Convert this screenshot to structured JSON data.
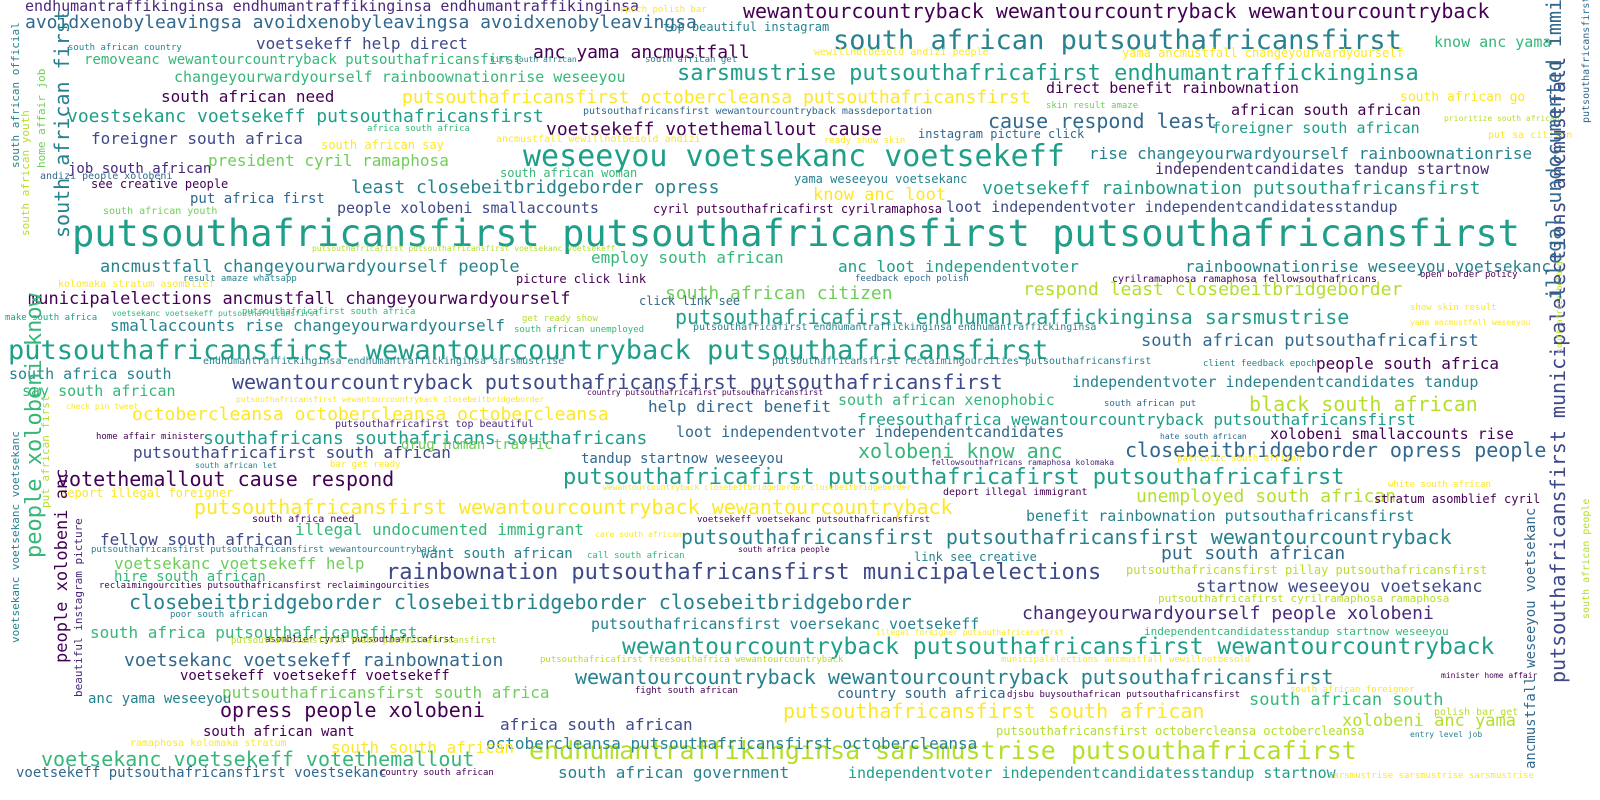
{
  "colors": {
    "yellow": "#fde725",
    "lime": "#b5de2b",
    "lightgreen": "#6ece58",
    "green": "#35b779",
    "teal": "#1f9e89",
    "blue": "#26828e",
    "steel": "#31688e",
    "indigo": "#3e4989",
    "purple": "#482878",
    "deep": "#440154"
  },
  "words": [
    "endhumantraffikinginsa endhumantraffikinginsa endhumantraffikinginsa",
    "avoidxenobyleavingsa avoidxenobyleavingsa avoidxenobyleavingsa",
    "wewantourcountryback wewantourcountryback wewantourcountryback",
    "south african putsouthafricansfirst",
    "sarsmustrise putsouthafricafirst endhumantraffickinginsa",
    "putsouthafricansfirst octobercleansa putsouthafricansfirst",
    "voestsekanc voetsekeff putsouthafricansfirst",
    "voetsekeff votethemallout cause",
    "weseeyou voetsekanc voetsekeff",
    "least closebeitbridgeborder opress",
    "voetsekeff rainbownation putsouthafricansfirst",
    "putsouthafricansfirst putsouthafricansfirst putsouthafricansfirst",
    "ancmustfall changeyourwardyourself people",
    "municipalelections ancmustfall changeyourwardyourself",
    "putsouthafricafirst endhumantraffickinginsa sarsmustrise",
    "putsouthafricansfirst wewantourcountryback putsouthafricansfirst",
    "wewantourcountryback putsouthafricansfirst putsouthafricansfirst",
    "octobercleansa octobercleansa octobercleansa",
    "southafricans southafricans southafricans",
    "xolobeni know anc",
    "closebeitbridgeborder opress people",
    "votethemallout cause respond",
    "putsouthafricafirst putsouthafricafirst putsouthafricafirst",
    "putsouthafricansfirst wewantourcountryback wewantourcountryback",
    "putsouthafricansfirst putsouthafricansfirst wewantourcountryback",
    "rainbownation putsouthafricansfirst municipalelections",
    "closebeitbridgeborder closebeitbridgeborder closebeitbridgeborder",
    "changeyourwardyourself people xolobeni",
    "voetsekanc voetsekeff rainbownation",
    "wewantourcountryback putsouthafricansfirst wewantourcountryback",
    "wewantourcountryback wewantourcountryback putsouthafricansfirst",
    "opress people xolobeni",
    "putsouthafricansfirst south african",
    "endhumantraffikinginsa sarsmustrise putsouthafricafirst",
    "voetsekanc voetsekeff votethemallout",
    "south african need",
    "foreigner south africa",
    "president cyril ramaphosa",
    "cause respond least",
    "employ south african",
    "south african citizen",
    "respond least closebeitbridgeborder",
    "black south african",
    "unemployed south african",
    "illegal undocumented immigrant",
    "votethemallout cause respond",
    "anc loot independentvoter",
    "rainboownationrise weseeyou voetsekanc",
    "know anc loot",
    "help direct benefit",
    "south african government",
    "independentvoter independentcandidatesstandup startnow",
    "africa south african",
    "octobercleansa putsouthafricansfirst octobercleansa",
    "south south african",
    "voetsekeff putsouthafricansfirst voestsekanc",
    "south africa putsouthafricansfirst",
    "putsouthafricansfirst south africa",
    "fellow south african",
    "voetsekanc voetsekeff help",
    "xolobeni anc yama",
    "south african south",
    "startnow weseeyou voetsekanc",
    "put south african",
    "benefit rainbownation putsouthafricansfirst",
    "freesouthafrica wewantourcountryback putsouthafricansfirst",
    "loot independentvoter independentcandidates",
    "south african xenophobic",
    "people south africa",
    "independentvoter independentcandidates tandup",
    "south african putsouthafricafirst",
    "smallaccounts rise changeyourwardyourself",
    "rise changeyourwardyourself rainboownationrise",
    "voetsekeff help direct",
    "anc yama ancmustfall",
    "know anc yama",
    "south african go",
    "african south african",
    "foreigner south african",
    "independentcandidates tandup startnow",
    "loot independentvoter independentcandidatesstandup",
    "people xolobeni smallaccounts",
    "direct benefit rainbownation",
    "south africa south",
    "say south african",
    "changeyourwardyourself rainboownationrise weseeyou",
    "job south african",
    "put africa first",
    "see creative people",
    "xolobeni smallaccounts rise",
    "drug human traffic",
    "tandup startnow weseeyou",
    "hire south african",
    "want south african",
    "anc yama weseeyou",
    "south african want",
    "country south africa",
    "putsouthafricansfirst voersekanc voetsekeff",
    "stratum asomblief cyril",
    "putsouthafricafirst south african",
    "top beautiful instagram",
    "instagram picture click",
    "yama weseeyou voetsekanc",
    "cyril putsouthafricafirst cyrilramaphosa",
    "picture click link",
    "click link see",
    "deport illegal foreigner",
    "deport illegal immigrant",
    "link see creative",
    "removeanc wewantourcountryback putsouthafricansfirst",
    "south african country",
    "south african say",
    "south african woman",
    "south african youth",
    "kolomaka stratum asomblief",
    "make south africa",
    "ramaphosa kolomaka stratum",
    "epoch polish bar",
    "yama ancmustfall changeyourwardyourself",
    "putsouthafricafirst cyrilramaphosa ramaphosa",
    "independentcandidatesstandup startnow weseeyou",
    "putsouthafricansfirst octobercleansa octobercleansa",
    "putsouthafricansfirst pillay putsouthafricansfirst",
    "polish bar get",
    "south african foreigner",
    "south african put",
    "hate south african",
    "white south african",
    "patriotic south african",
    "result amaze whatsapp",
    "feedback epoch polish",
    "client feedback epoch",
    "cyrilramaphosa ramaphosa fellowsouthafricans",
    "ready show skin",
    "get ready show",
    "south african unemployed",
    "show skin result",
    "skin result amaze",
    "care south african",
    "call south african",
    "south africa people",
    "fight south african",
    "poor south african",
    "country south african",
    "entry level job",
    "minister home affair",
    "home affair minister",
    "municipalelections ancmustfall wewillnotbesold",
    "djsbu buysouthafrican putsouthafricansfirst",
    "putsouthafricafirst freesouthafrica wewantourcountryback",
    "sarsmustrise sarsmustrise sarsmustrise",
    "putsouthafricafirst endhumantraffickinginsa endhumantraffickinginsa",
    "putsouthafricansfirst reclaimingourcities putsouthafricansfirst",
    "endhumantraffickinginsa endhumantraffickinginsa sarsmustrise",
    "putsouthafricansfirst wewantourcountryback massdeportation",
    "putsouthafricafirst top beautiful",
    "south african put",
    "asomblief cyril putsouthafricafirst",
    "anc loot independentvoter",
    "south african let",
    "bar get ready",
    "check pin tweet",
    "voetsekeff voetsekeff voetsekeff",
    "putsouthafricansfirst thabo putsouthafricansfirst",
    "reclaimingourcities putsouthafricansfirst reclaimingourcities",
    "putsouthafricansfirst putsouthafricansfirst wewantourcountryback",
    "south africa need",
    "voetsekeff voetsekanc putsouthafricansfirst",
    "illegal foreigner putsouthafricansfirst",
    "fellowsouthafricans ramaphosa kolomaka",
    "closebeitbridgeborder opress people",
    "open border policy",
    "prioritize south african",
    "put sa citizen",
    "yama ancmustfall weseeyou",
    "wewillnotbesold andizi people",
    "ancmustfall wewillnotbesold andizi",
    "kill south african",
    "south african get",
    "andizi people xolobeni",
    "africa south africa",
    "south african country",
    "putsouthafricafirst putsouthafricansfirst voetsekanc voetsekeff",
    "putsouthafricafirst south africa",
    "putsouthafricansfirst wewantourcountryback closebeitbridgeborder",
    "country putsouthafricafirst putsouthafricansfirst",
    "wewantourcountryback closebeitbridgeborder closebeitbridgeborder",
    "putsouthafricansfirst putsouthafricansfirst wewantourcountryback",
    "voetsekanc voetsekeff putsouthafricansfirst",
    "south african first",
    "putsouthafricansfirst municipalelections ancmustfall",
    "people xolobeni know",
    "people xolobeni anc",
    "home affair job",
    "south african official",
    "south african youth",
    "putsouthafricansfirst employsouthafricans",
    "south africa belongs",
    "ancmustfall weseeyou voetsekanc",
    "south african people",
    "voetsekanc voetsekanc voetsekanc",
    "beautiful instagram picture",
    "put african first"
  ]
}
